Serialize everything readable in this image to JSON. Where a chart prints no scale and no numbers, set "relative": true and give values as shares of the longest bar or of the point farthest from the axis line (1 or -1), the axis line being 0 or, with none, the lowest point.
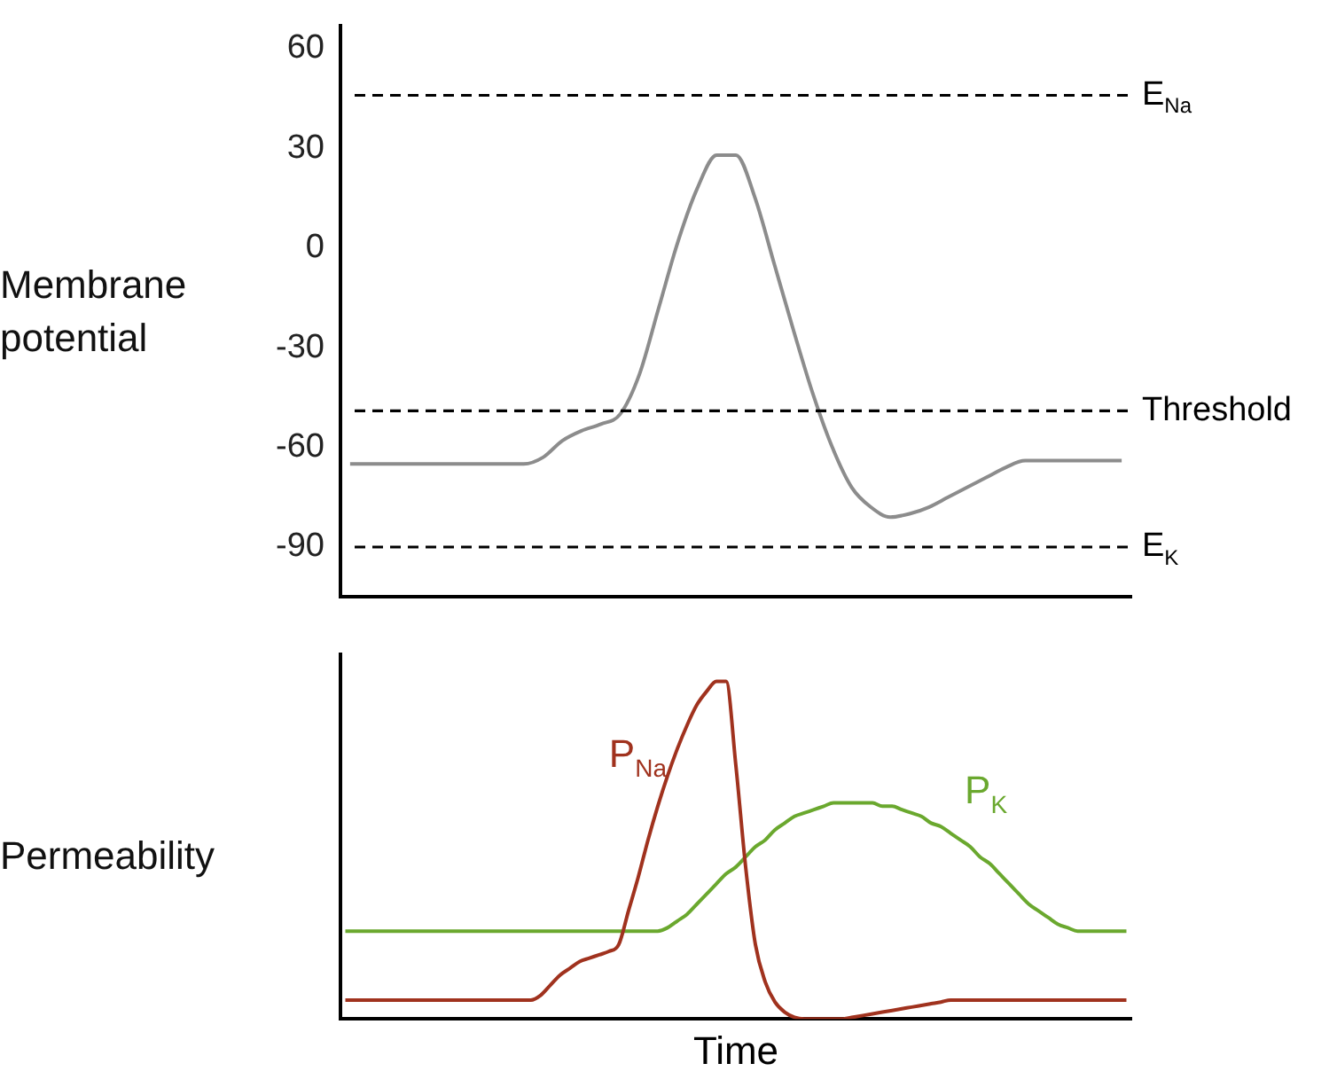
{
  "chart_data": [
    {
      "type": "line",
      "ylabel": "Membrane potential",
      "categories": [
        null,
        null,
        null,
        null,
        null,
        null,
        null,
        null,
        null,
        null,
        null,
        null,
        null,
        null,
        null,
        null,
        null,
        null,
        null,
        null,
        null,
        null,
        null,
        null,
        null,
        null,
        null,
        null,
        null,
        null,
        null,
        null,
        null,
        null,
        null,
        null,
        null,
        null,
        null,
        null,
        null
      ],
      "series": [
        {
          "color": "#8c8c8c",
          "values": [
            -65,
            -65,
            -65,
            -65,
            -65,
            -65,
            -65,
            -65,
            -65,
            -65,
            -63,
            -58,
            -55,
            -53,
            -50,
            -38,
            -18,
            2,
            18,
            28,
            28,
            15,
            -5,
            -25,
            -44,
            -60,
            -72,
            -78,
            -81,
            -80,
            -78,
            -75,
            -72,
            -69,
            -66,
            -64,
            -64,
            -64,
            -64,
            -64,
            -64
          ]
        }
      ],
      "ylim": [
        -105,
        67
      ],
      "yticks": [
        -90,
        -60,
        -30,
        0,
        30,
        60
      ],
      "grid": false,
      "legend": false,
      "tick_labels": "y",
      "marker": "none",
      "ref_lines": [
        {
          "axis": "y",
          "value": 46,
          "label": "E$_{Na}$",
          "color": "#000000",
          "line_style": "dashed"
        },
        {
          "axis": "y",
          "value": -49,
          "label": "Threshold",
          "color": "#000000",
          "line_style": "dashed"
        },
        {
          "axis": "y",
          "value": -90,
          "label": "E$_{K}$",
          "color": "#000000",
          "line_style": "dashed"
        }
      ]
    },
    {
      "type": "line",
      "ylabel": "Permeability",
      "xlabel": "Time",
      "relative": true,
      "categories": [
        null,
        null,
        null,
        null,
        null,
        null,
        null,
        null,
        null,
        null,
        null,
        null,
        null,
        null,
        null,
        null,
        null,
        null,
        null,
        null,
        null,
        null,
        null,
        null,
        null,
        null,
        null,
        null,
        null,
        null,
        null,
        null,
        null,
        null,
        null,
        null,
        null,
        null,
        null,
        null,
        null,
        null,
        null,
        null,
        null,
        null,
        null,
        null,
        null,
        null,
        null,
        null,
        null,
        null,
        null,
        null,
        null,
        null,
        null,
        null,
        null,
        null,
        null,
        null,
        null,
        null,
        null,
        null,
        null,
        null,
        null,
        null,
        null,
        null,
        null,
        null,
        null,
        null,
        null,
        null,
        null
      ],
      "series": [
        {
          "name": "P$_{Na}$",
          "color": "#a0321e",
          "values": [
            0.056,
            0.056,
            0.056,
            0.056,
            0.056,
            0.056,
            0.056,
            0.056,
            0.056,
            0.056,
            0.056,
            0.056,
            0.056,
            0.056,
            0.056,
            0.056,
            0.056,
            0.056,
            0.056,
            0.056,
            0.07,
            0.1,
            0.13,
            0.15,
            0.17,
            0.18,
            0.19,
            0.2,
            0.22,
            0.32,
            0.42,
            0.53,
            0.63,
            0.72,
            0.8,
            0.87,
            0.93,
            0.97,
            1,
            1,
            0.75,
            0.45,
            0.22,
            0.11,
            0.05,
            0.02,
            0.005,
            0,
            0,
            0,
            0,
            0,
            0.005,
            0.01,
            0.015,
            0.02,
            0.025,
            0.03,
            0.035,
            0.04,
            0.045,
            0.05,
            0.056,
            0.056,
            0.056,
            0.056,
            0.056,
            0.056,
            0.056,
            0.056,
            0.056,
            0.056,
            0.056,
            0.056,
            0.056,
            0.056,
            0.056,
            0.056,
            0.056,
            0.056,
            0.056
          ]
        },
        {
          "name": "P$_{K}$",
          "color": "#6aa82e",
          "values": [
            0.26,
            0.26,
            0.26,
            0.26,
            0.26,
            0.26,
            0.26,
            0.26,
            0.26,
            0.26,
            0.26,
            0.26,
            0.26,
            0.26,
            0.26,
            0.26,
            0.26,
            0.26,
            0.26,
            0.26,
            0.26,
            0.26,
            0.26,
            0.26,
            0.26,
            0.26,
            0.26,
            0.26,
            0.26,
            0.26,
            0.26,
            0.26,
            0.26,
            0.27,
            0.29,
            0.31,
            0.34,
            0.37,
            0.4,
            0.43,
            0.45,
            0.48,
            0.51,
            0.53,
            0.56,
            0.58,
            0.6,
            0.61,
            0.62,
            0.63,
            0.64,
            0.64,
            0.64,
            0.64,
            0.64,
            0.63,
            0.63,
            0.62,
            0.61,
            0.6,
            0.58,
            0.57,
            0.55,
            0.53,
            0.51,
            0.48,
            0.46,
            0.43,
            0.4,
            0.37,
            0.34,
            0.32,
            0.3,
            0.28,
            0.27,
            0.26,
            0.26,
            0.26,
            0.26,
            0.26,
            0.26
          ]
        }
      ],
      "grid": false,
      "legend": false,
      "tick_labels": false,
      "marker": "none"
    }
  ]
}
